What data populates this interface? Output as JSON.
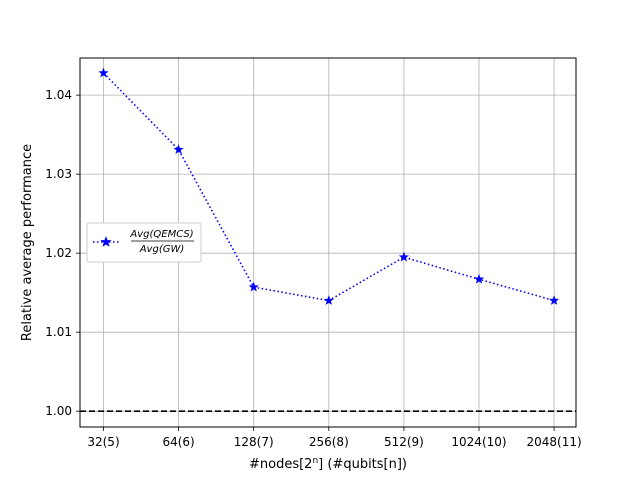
{
  "chart_data": {
    "type": "line",
    "title": "",
    "xlabel": "#nodes[2^n] (#qubits[n])",
    "xlabel_parts": {
      "prefix": "#nodes[2",
      "sup": "n",
      "suffix": "] (#qubits[n])"
    },
    "ylabel": "Relative average performance",
    "categories": [
      "32(5)",
      "64(6)",
      "128(7)",
      "256(8)",
      "512(9)",
      "1024(10)",
      "2048(11)"
    ],
    "series": [
      {
        "name": "Avg(QEMCS) / Avg(GW)",
        "name_numerator": "Avg(QEMCS)",
        "name_denominator": "Avg(GW)",
        "values": [
          1.0428,
          1.0331,
          1.0157,
          1.014,
          1.0195,
          1.0167,
          1.014
        ],
        "color": "#0000ff",
        "line_style": "dotted",
        "marker": "star"
      }
    ],
    "reference_line": {
      "y": 1.0,
      "color": "#000000",
      "line_style": "dashed"
    },
    "ylim": [
      0.998,
      1.0447
    ],
    "yticks": [
      1.0,
      1.01,
      1.02,
      1.03,
      1.04
    ],
    "ytick_labels": [
      "1.00",
      "1.01",
      "1.02",
      "1.03",
      "1.04"
    ],
    "grid": true,
    "legend_position": "center-left"
  }
}
